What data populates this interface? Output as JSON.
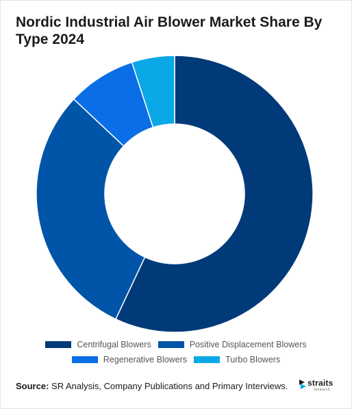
{
  "chart_data": {
    "type": "pie",
    "title": "Nordic Industrial Air Blower Market Share By Type 2024",
    "categories": [
      "Centrifugal Blowers",
      "Positive Displacement Blowers",
      "Regenerative Blowers",
      "Turbo Blowers"
    ],
    "values": [
      57,
      30,
      8,
      5
    ],
    "colors": [
      "#003a78",
      "#0055a8",
      "#0a6ee6",
      "#0aa8e6"
    ],
    "legend_position": "bottom",
    "donut": true
  },
  "source": {
    "label": "Source:",
    "text": "SR Analysis, Company Publications and Primary Interviews."
  },
  "logo": {
    "name": "straits",
    "sub": "research",
    "icon": "straits-logo-icon"
  }
}
